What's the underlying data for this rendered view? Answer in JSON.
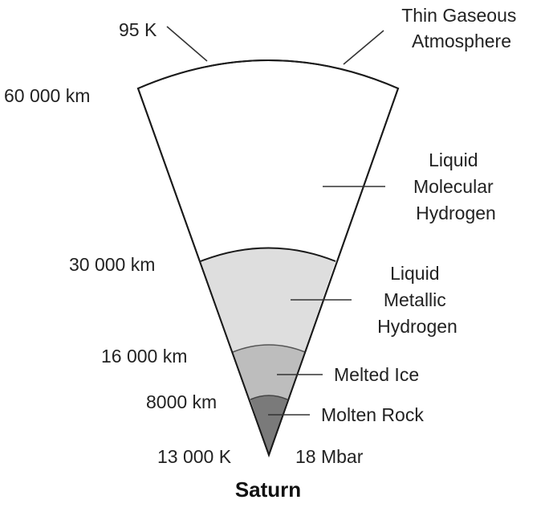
{
  "title": "Saturn",
  "top_temperature": "95 K",
  "center_temperature": "13 000 K",
  "center_pressure": "18 Mbar",
  "radii": {
    "r60000": "60 000 km",
    "r30000": "30 000 km",
    "r16000": "16 000 km",
    "r8000": "8000 km"
  },
  "layers": {
    "atmosphere": [
      "Thin Gaseous",
      "Atmosphere"
    ],
    "molecular": [
      "Liquid",
      "Molecular",
      "Hydrogen"
    ],
    "metallic": [
      "Liquid",
      "Metallic",
      "Hydrogen"
    ],
    "ice": "Melted Ice",
    "rock": "Molten Rock"
  },
  "colors": {
    "molecular_hydrogen": "#ffffff",
    "metallic_hydrogen": "#dedede",
    "melted_ice": "#bdbdbd",
    "molten_rock": "#7a7a7a"
  }
}
